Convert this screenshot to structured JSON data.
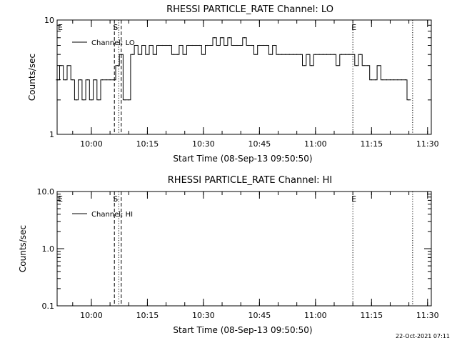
{
  "footer": {
    "timestamp": "22-Oct-2021 07:11"
  },
  "marker_letters": {
    "e": "E",
    "s": "S"
  },
  "chart_data": [
    {
      "type": "line",
      "title": "RHESSI PARTICLE_RATE Channel: LO",
      "xlabel": "Start Time (08-Sep-13 09:50:50)",
      "ylabel": "Counts/sec",
      "yscale": "log",
      "ylim": [
        1,
        10
      ],
      "yticks": [
        {
          "v": 1,
          "label": "1"
        },
        {
          "v": 10,
          "label": "10"
        }
      ],
      "xlim": [
        "09:50:50",
        "11:31:00"
      ],
      "xticks": [
        "10:00",
        "10:15",
        "10:30",
        "10:45",
        "11:00",
        "11:15",
        "11:30"
      ],
      "legend": {
        "position": "top-left"
      },
      "series": [
        {
          "name": "Channel: LO",
          "x": [
            "09:51",
            "09:52",
            "09:53",
            "09:54",
            "09:55",
            "09:56",
            "09:57",
            "09:58",
            "09:59",
            "10:00",
            "10:01",
            "10:02",
            "10:03",
            "10:04",
            "10:05",
            "10:06",
            "10:07",
            "10:08",
            "10:09",
            "10:10",
            "10:11",
            "10:12",
            "10:13",
            "10:14",
            "10:15",
            "10:16",
            "10:17",
            "10:18",
            "10:19",
            "10:20",
            "10:21",
            "10:22",
            "10:23",
            "10:24",
            "10:25",
            "10:26",
            "10:27",
            "10:28",
            "10:29",
            "10:30",
            "10:31",
            "10:32",
            "10:33",
            "10:34",
            "10:35",
            "10:36",
            "10:37",
            "10:38",
            "10:39",
            "10:40",
            "10:41",
            "10:42",
            "10:43",
            "10:44",
            "10:45",
            "10:46",
            "10:47",
            "10:48",
            "10:49",
            "10:50",
            "10:51",
            "10:52",
            "10:53",
            "10:54",
            "10:55",
            "10:56",
            "10:57",
            "10:58",
            "10:59",
            "11:00",
            "11:01",
            "11:02",
            "11:03",
            "11:04",
            "11:05",
            "11:06",
            "11:07",
            "11:08",
            "11:09",
            "11:10",
            "11:11",
            "11:12",
            "11:13",
            "11:14",
            "11:15",
            "11:16",
            "11:17",
            "11:18",
            "11:19",
            "11:20",
            "11:21",
            "11:22",
            "11:23",
            "11:24",
            "11:25"
          ],
          "values": [
            3,
            4,
            3,
            4,
            3,
            2,
            3,
            2,
            3,
            2,
            3,
            2,
            3,
            3,
            3,
            3,
            4,
            5,
            2,
            2,
            5,
            6,
            5,
            6,
            5,
            6,
            5,
            6,
            6,
            6,
            6,
            5,
            5,
            6,
            5,
            6,
            6,
            6,
            6,
            5,
            6,
            6,
            7,
            6,
            7,
            6,
            7,
            6,
            6,
            6,
            7,
            6,
            6,
            5,
            6,
            6,
            6,
            5,
            6,
            5,
            5,
            5,
            5,
            5,
            5,
            5,
            4,
            5,
            4,
            5,
            5,
            5,
            5,
            5,
            5,
            4,
            5,
            5,
            5,
            5,
            4,
            5,
            4,
            4,
            3,
            3,
            4,
            3,
            3,
            3,
            3,
            3,
            3,
            3,
            2
          ]
        }
      ],
      "markers": [
        {
          "time": "09:51:30",
          "style": "none",
          "label": "E"
        },
        {
          "time": "10:06:10",
          "style": "dashed",
          "label": "S"
        },
        {
          "time": "10:07:20",
          "style": "dotted",
          "label": ""
        },
        {
          "time": "10:08:00",
          "style": "dashed",
          "label": ""
        },
        {
          "time": "11:10:00",
          "style": "dotted",
          "label": "E"
        },
        {
          "time": "11:26:00",
          "style": "dotted",
          "label": ""
        }
      ]
    },
    {
      "type": "line",
      "title": "RHESSI PARTICLE_RATE Channel: HI",
      "xlabel": "Start Time (08-Sep-13 09:50:50)",
      "ylabel": "Counts/sec",
      "yscale": "log",
      "ylim": [
        0.1,
        10
      ],
      "yticks": [
        {
          "v": 0.1,
          "label": "0.1"
        },
        {
          "v": 1,
          "label": "1.0"
        },
        {
          "v": 10,
          "label": "10.0"
        }
      ],
      "xlim": [
        "09:50:50",
        "11:31:00"
      ],
      "xticks": [
        "10:00",
        "10:15",
        "10:30",
        "10:45",
        "11:00",
        "11:15",
        "11:30"
      ],
      "legend": {
        "position": "top-left"
      },
      "series": [
        {
          "name": "Channel: HI",
          "x": [],
          "values": []
        }
      ],
      "markers": [
        {
          "time": "09:51:30",
          "style": "none",
          "label": "E"
        },
        {
          "time": "10:06:10",
          "style": "dashed",
          "label": "S"
        },
        {
          "time": "10:07:20",
          "style": "dotted",
          "label": ""
        },
        {
          "time": "10:08:00",
          "style": "dashed",
          "label": ""
        },
        {
          "time": "11:10:00",
          "style": "dotted",
          "label": "E"
        },
        {
          "time": "11:26:00",
          "style": "dotted",
          "label": ""
        }
      ]
    }
  ]
}
